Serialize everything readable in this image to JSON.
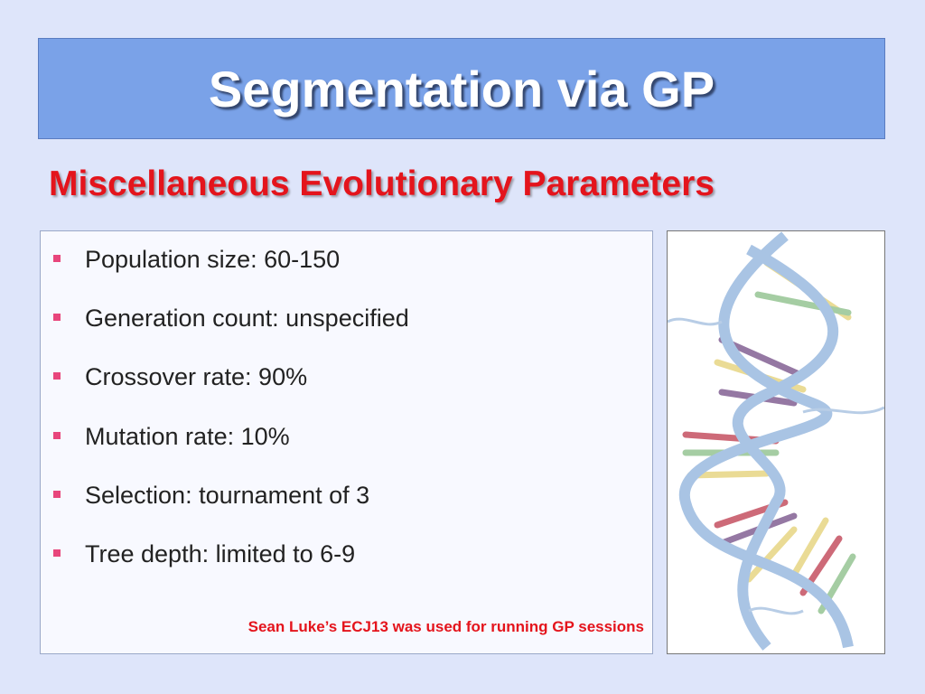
{
  "title": "Segmentation via GP",
  "subtitle": "Miscellaneous Evolutionary Parameters",
  "bullets": [
    "Population size: 60-150",
    "Generation count: unspecified",
    "Crossover rate: 90%",
    "Mutation rate: 10%",
    "Selection: tournament of 3",
    "Tree depth: limited to 6-9"
  ],
  "footnote": "Sean Luke’s ECJ13 was used for running GP sessions"
}
